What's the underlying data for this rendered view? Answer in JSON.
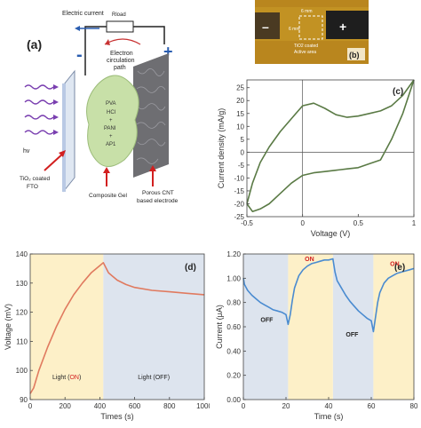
{
  "panel_a": {
    "label": "(a)",
    "electric_current": "Electric current",
    "rload": "Rload",
    "circulation": [
      "Electron",
      "circulation",
      "path"
    ],
    "minus": "-",
    "plus": "+",
    "hv": "hv",
    "gel_text": [
      "PVA",
      "HCl",
      "+",
      "PANI",
      "+",
      "AP1"
    ],
    "tio2_label": [
      "TiO₂ coated",
      "FTO"
    ],
    "gel_label": "Composite Gel",
    "cnt_label": [
      "Porous CNT",
      "based electrode"
    ]
  },
  "panel_b": {
    "label": "(b)",
    "minus": "–",
    "plus": "+",
    "dim_top": "6 mm",
    "dim_side": "6 mm",
    "caption": [
      "TiO2 coated",
      "Active area"
    ]
  },
  "colors": {
    "cv_line": "#5a7a45",
    "d_line": "#e07a5f",
    "e_line": "#4a8bd0",
    "on_fill": "#fdf0c8",
    "off_fill": "#dde4ee"
  },
  "chart_data": [
    {
      "panel": "(c)",
      "type": "line",
      "xlabel": "Voltage (V)",
      "ylabel": "Current density (mA/g)",
      "xlim": [
        -0.5,
        1.0
      ],
      "ylim": [
        -25,
        28
      ],
      "xticks": [
        -0.5,
        0,
        0.5,
        1
      ],
      "yticks": [
        -25,
        -20,
        -15,
        -10,
        -5,
        0,
        5,
        10,
        15,
        20,
        25
      ],
      "zero_lines": true,
      "series": [
        {
          "upper_x": [
            -0.5,
            -0.45,
            -0.38,
            -0.3,
            -0.2,
            -0.1,
            0.0,
            0.1,
            0.2,
            0.3,
            0.4,
            0.5,
            0.6,
            0.7,
            0.8,
            0.9,
            1.0
          ],
          "upper_y": [
            -20,
            -12,
            -4,
            2,
            8,
            13,
            18,
            19,
            17,
            14.5,
            13.5,
            14,
            15,
            16,
            18,
            22,
            28
          ],
          "lower_x": [
            1.0,
            0.9,
            0.8,
            0.7,
            0.6,
            0.5,
            0.4,
            0.3,
            0.2,
            0.1,
            0.0,
            -0.1,
            -0.2,
            -0.3,
            -0.38,
            -0.45,
            -0.5
          ],
          "lower_y": [
            28,
            15,
            5,
            -3,
            -4.5,
            -6,
            -6.5,
            -7,
            -7.5,
            -8,
            -9,
            -12,
            -16,
            -20,
            -22,
            -23,
            -20
          ]
        }
      ]
    },
    {
      "panel": "(d)",
      "type": "line",
      "xlabel": "Times (s)",
      "ylabel": "Voltage (mV)",
      "xlim": [
        0,
        1000
      ],
      "ylim": [
        90,
        140
      ],
      "xticks": [
        0,
        200,
        400,
        600,
        800,
        1000
      ],
      "yticks": [
        90,
        100,
        110,
        120,
        130,
        140
      ],
      "light_on": [
        0,
        420
      ],
      "light_off": [
        420,
        1000
      ],
      "annotations": {
        "on_prefix": "Light (",
        "on_word": "ON",
        "on_suffix": ")",
        "off": "Light (OFF)"
      },
      "series": [
        {
          "x": [
            0,
            20,
            50,
            100,
            150,
            200,
            250,
            300,
            350,
            400,
            420,
            450,
            500,
            550,
            600,
            700,
            800,
            900,
            1000
          ],
          "y": [
            92,
            94,
            100,
            108,
            115,
            121,
            126,
            130,
            133.5,
            136,
            137,
            133.5,
            131,
            129.5,
            128.5,
            127.5,
            127,
            126.5,
            126
          ]
        }
      ]
    },
    {
      "panel": "(e)",
      "type": "line",
      "xlabel": "Time (s)",
      "ylabel": "Current (μA)",
      "xlim": [
        0,
        80
      ],
      "ylim": [
        0.0,
        1.2
      ],
      "xticks": [
        0,
        20,
        40,
        60,
        80
      ],
      "yticks": [
        0.0,
        0.2,
        0.4,
        0.6,
        0.8,
        1.0,
        1.2
      ],
      "off_ranges": [
        [
          0,
          21
        ],
        [
          42,
          61
        ]
      ],
      "on_ranges": [
        [
          21,
          42
        ],
        [
          61,
          80
        ]
      ],
      "annotations": [
        {
          "text": "OFF",
          "x": 11,
          "y": 0.64
        },
        {
          "text": "ON",
          "x": 31,
          "y": 1.14
        },
        {
          "text": "OFF",
          "x": 51,
          "y": 0.52
        },
        {
          "text": "ON",
          "x": 71,
          "y": 1.1
        }
      ],
      "series": [
        {
          "x": [
            0,
            0.5,
            2,
            4,
            6,
            8,
            10,
            12,
            14,
            16,
            18,
            20,
            21,
            22,
            23,
            24,
            26,
            28,
            30,
            32,
            34,
            36,
            38,
            40,
            42,
            43,
            44,
            46,
            48,
            50,
            52,
            54,
            56,
            58,
            60,
            61,
            62,
            63,
            64,
            66,
            68,
            70,
            72,
            74,
            76,
            78,
            80
          ],
          "y": [
            1.0,
            0.95,
            0.9,
            0.86,
            0.83,
            0.8,
            0.78,
            0.76,
            0.74,
            0.73,
            0.72,
            0.7,
            0.62,
            0.7,
            0.82,
            0.92,
            1.02,
            1.07,
            1.1,
            1.12,
            1.13,
            1.14,
            1.15,
            1.15,
            1.16,
            1.05,
            0.98,
            0.92,
            0.86,
            0.81,
            0.77,
            0.73,
            0.7,
            0.67,
            0.65,
            0.56,
            0.68,
            0.8,
            0.88,
            0.96,
            1.0,
            1.02,
            1.04,
            1.05,
            1.06,
            1.07,
            1.08
          ]
        }
      ]
    }
  ]
}
